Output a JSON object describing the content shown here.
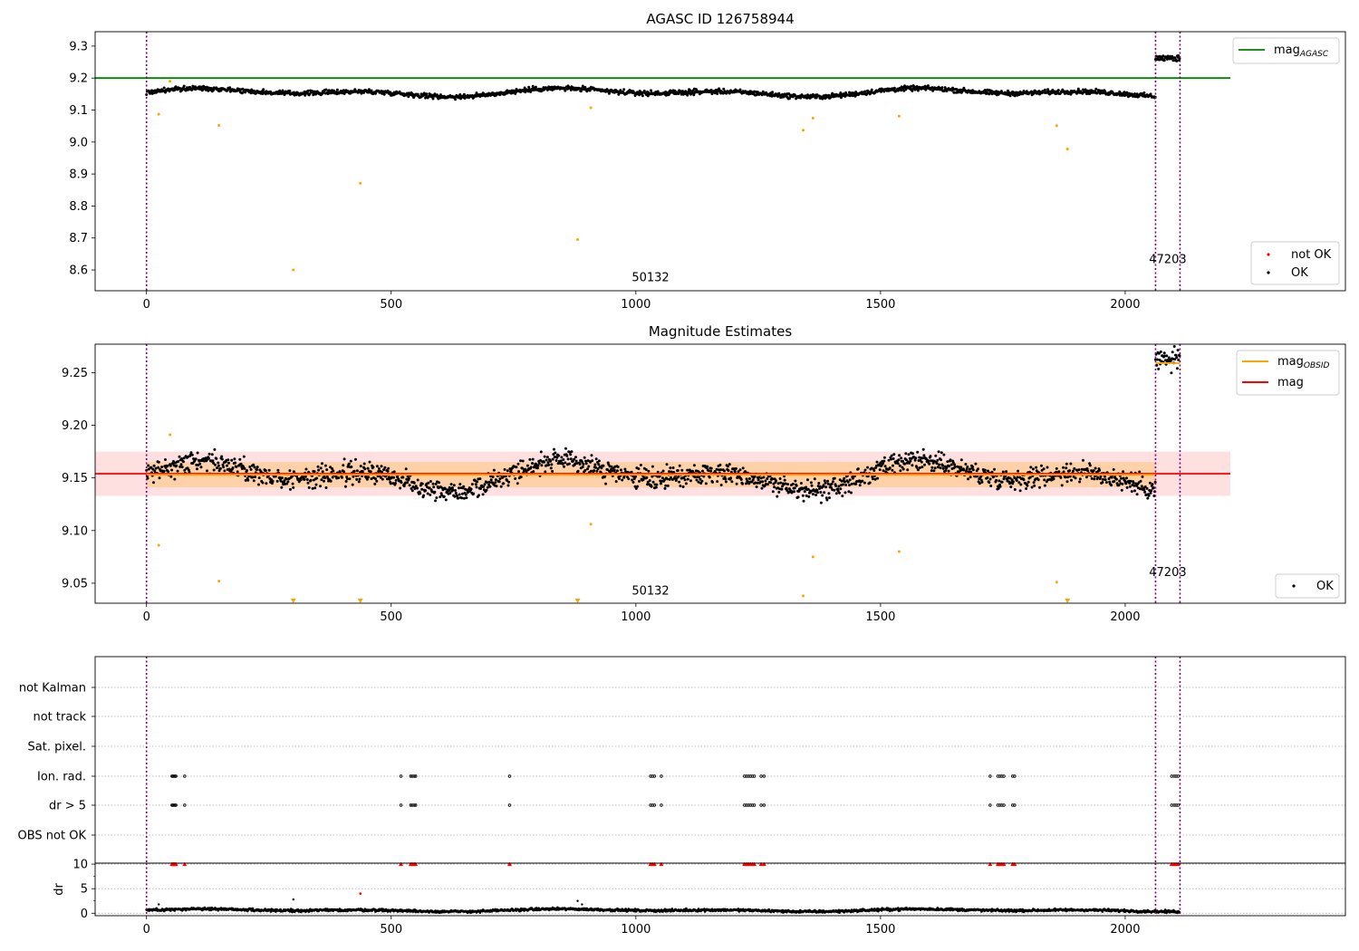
{
  "chart_data": [
    {
      "type": "scatter",
      "title": "AGASC ID 126758944",
      "xlabel": "",
      "ylabel": "",
      "xlim": [
        -105,
        2450
      ],
      "ylim": [
        8.535,
        9.345
      ],
      "xticks": [
        "0",
        "500",
        "1000",
        "1500",
        "2000"
      ],
      "yticks": [
        "8.6",
        "8.7",
        "8.8",
        "8.9",
        "9.0",
        "9.1",
        "9.2",
        "9.3"
      ],
      "reference_lines": [
        {
          "name": "mag_AGASC",
          "y": 9.2,
          "x_range": [
            -105,
            2215
          ],
          "color": "#008000"
        }
      ],
      "segment_boundaries": [
        0,
        2062,
        2112
      ],
      "segment_labels": [
        {
          "text": "50132",
          "x": 1030,
          "y": 8.565
        },
        {
          "text": "47203",
          "x": 2087,
          "y": 8.622
        }
      ],
      "series": [
        {
          "name": "OK",
          "color": "#000000",
          "marker": "dot",
          "segments": [
            {
              "x_range": [
                0,
                2062
              ],
              "base": 9.155,
              "amplitude": 0.015,
              "noise": 0.006
            },
            {
              "x_range": [
                2062,
                2112
              ],
              "base": 9.262,
              "amplitude": 0.0,
              "noise": 0.008
            }
          ]
        },
        {
          "name": "not OK",
          "color": "#ff0000",
          "points": []
        },
        {
          "name": "outliers",
          "color": "#ffa500",
          "points": [
            [
              25,
              9.087
            ],
            [
              48,
              9.19
            ],
            [
              148,
              9.052
            ],
            [
              300,
              8.6
            ],
            [
              437,
              8.871
            ],
            [
              881,
              8.695
            ],
            [
              908,
              9.107
            ],
            [
              1342,
              9.037
            ],
            [
              1362,
              9.075
            ],
            [
              1538,
              9.081
            ],
            [
              1860,
              9.051
            ],
            [
              1882,
              8.978
            ]
          ]
        }
      ],
      "legend": {
        "upper": {
          "placement": "top-right",
          "entries": [
            {
              "label": "mag",
              "subscript": "AGASC",
              "color": "#008000"
            }
          ]
        },
        "lower": {
          "placement": "bottom-right",
          "entries": [
            {
              "label": "not OK",
              "color": "#ff0000"
            },
            {
              "label": "OK",
              "color": "#000000"
            }
          ]
        }
      },
      "grid": false
    },
    {
      "type": "scatter",
      "title": "Magnitude Estimates",
      "xlabel": "",
      "ylabel": "",
      "xlim": [
        -105,
        2450
      ],
      "ylim": [
        9.031,
        9.277
      ],
      "xticks": [
        "0",
        "500",
        "1000",
        "1500",
        "2000"
      ],
      "yticks": [
        "9.05",
        "9.10",
        "9.15",
        "9.20",
        "9.25"
      ],
      "reference_lines": [
        {
          "name": "mag",
          "y": 9.154,
          "x_range": [
            -105,
            2215
          ],
          "color": "#ff0000"
        },
        {
          "name": "mag_OBSID",
          "y": 9.153,
          "x_range": [
            0,
            2062
          ],
          "color": "#ffa500"
        },
        {
          "name": "mag_OBSID",
          "y": 9.259,
          "x_range": [
            2062,
            2112
          ],
          "color": "#ffa500"
        }
      ],
      "bands": [
        {
          "y_range": [
            9.133,
            9.175
          ],
          "x_range": [
            -105,
            2215
          ],
          "color": "#ff0000",
          "opacity": 0.12
        },
        {
          "y_range": [
            9.141,
            9.165
          ],
          "x_range": [
            0,
            2062
          ],
          "color": "#ffa500",
          "opacity": 0.25
        }
      ],
      "segment_boundaries": [
        0,
        2062,
        2112
      ],
      "segment_labels": [
        {
          "text": "50132",
          "x": 1030,
          "y": 9.039
        },
        {
          "text": "47203",
          "x": 2087,
          "y": 9.057
        }
      ],
      "series": [
        {
          "name": "OK",
          "color": "#000000",
          "marker": "dot",
          "segments": [
            {
              "x_range": [
                0,
                2062
              ],
              "base": 9.152,
              "amplitude": 0.016,
              "noise": 0.008
            },
            {
              "x_range": [
                2062,
                2112
              ],
              "base": 9.262,
              "amplitude": 0.0,
              "noise": 0.01
            }
          ]
        },
        {
          "name": "outliers",
          "color": "#ffa500",
          "points": [
            [
              25,
              9.086
            ],
            [
              48,
              9.191
            ],
            [
              148,
              9.052
            ],
            [
              908,
              9.106
            ],
            [
              1342,
              9.038
            ],
            [
              1362,
              9.075
            ],
            [
              1538,
              9.08
            ],
            [
              1860,
              9.051
            ]
          ]
        },
        {
          "name": "below-range",
          "color": "#ffa500",
          "marker": "triangle-down",
          "points": [
            [
              300,
              9.031
            ],
            [
              437,
              9.031
            ],
            [
              881,
              9.031
            ],
            [
              1882,
              9.031
            ]
          ]
        }
      ],
      "legend": {
        "upper": {
          "placement": "top-right",
          "entries": [
            {
              "label": "mag",
              "subscript": "OBSID",
              "color": "#ffa500"
            },
            {
              "label": "mag",
              "color": "#ff0000"
            }
          ]
        },
        "lower": {
          "placement": "bottom-right",
          "entries": [
            {
              "label": "OK",
              "color": "#000000"
            }
          ]
        }
      },
      "grid": false
    },
    {
      "type": "scatter",
      "title": "",
      "xlabel": "",
      "ylabel": "",
      "xlim": [
        -105,
        2450
      ],
      "categories": [
        "not Kalman",
        "not track",
        "Sat. pixel.",
        "Ion. rad.",
        "dr > 5",
        "OBS not OK"
      ],
      "segment_boundaries": [
        0,
        2062,
        2112
      ],
      "flags": {
        "Ion. rad.": [
          52,
          54,
          56,
          58,
          60,
          78,
          520,
          540,
          543,
          547,
          550,
          742,
          1030,
          1034,
          1038,
          1052,
          1222,
          1226,
          1230,
          1234,
          1238,
          1242,
          1256,
          1262,
          1724,
          1740,
          1744,
          1748,
          1752,
          1770,
          1774,
          2095,
          2100,
          2104,
          2108
        ],
        "dr > 5": [
          52,
          54,
          56,
          58,
          60,
          78,
          520,
          540,
          543,
          547,
          550,
          742,
          1030,
          1034,
          1038,
          1052,
          1222,
          1226,
          1230,
          1234,
          1238,
          1242,
          1256,
          1262,
          1724,
          1740,
          1744,
          1748,
          1752,
          1770,
          1774,
          2095,
          2100,
          2104,
          2108
        ]
      },
      "grid": true
    },
    {
      "type": "scatter",
      "title": "",
      "xlabel": "",
      "ylabel": "dr",
      "xlim": [
        -105,
        2450
      ],
      "ylim": [
        -0.5,
        10.2
      ],
      "yticks": [
        "0",
        "5",
        "10"
      ],
      "xticks": [
        "0",
        "500",
        "1000",
        "1500",
        "2000"
      ],
      "segment_boundaries": [
        0,
        2062,
        2112
      ],
      "series": [
        {
          "name": "dr",
          "color": "#000000",
          "marker": "dot",
          "segments": [
            {
              "x_range": [
                0,
                2112
              ],
              "base": 0.6,
              "amplitude": 0.3,
              "noise": 0.2
            }
          ]
        },
        {
          "name": "dr-outliers",
          "color": "#000000",
          "points": [
            [
              25,
              1.8
            ],
            [
              300,
              2.8
            ],
            [
              881,
              2.5
            ],
            [
              890,
              1.8
            ]
          ]
        },
        {
          "name": "dr-clipped",
          "color": "#ff0000",
          "marker": "triangle-up",
          "points": [
            [
              52,
              10
            ],
            [
              54,
              10
            ],
            [
              56,
              10
            ],
            [
              58,
              10
            ],
            [
              60,
              10
            ],
            [
              78,
              10
            ],
            [
              520,
              10
            ],
            [
              540,
              10
            ],
            [
              543,
              10
            ],
            [
              547,
              10
            ],
            [
              550,
              10
            ],
            [
              742,
              10
            ],
            [
              1030,
              10
            ],
            [
              1034,
              10
            ],
            [
              1038,
              10
            ],
            [
              1052,
              10
            ],
            [
              1222,
              10
            ],
            [
              1226,
              10
            ],
            [
              1230,
              10
            ],
            [
              1234,
              10
            ],
            [
              1238,
              10
            ],
            [
              1242,
              10
            ],
            [
              1256,
              10
            ],
            [
              1262,
              10
            ],
            [
              1724,
              10
            ],
            [
              1740,
              10
            ],
            [
              1744,
              10
            ],
            [
              1748,
              10
            ],
            [
              1752,
              10
            ],
            [
              1770,
              10
            ],
            [
              1774,
              10
            ],
            [
              2095,
              10
            ],
            [
              2100,
              10
            ],
            [
              2104,
              10
            ],
            [
              2108,
              10
            ]
          ]
        },
        {
          "name": "dr-red",
          "color": "#ff0000",
          "points": [
            [
              437,
              4.0
            ]
          ]
        }
      ],
      "grid": true
    }
  ]
}
